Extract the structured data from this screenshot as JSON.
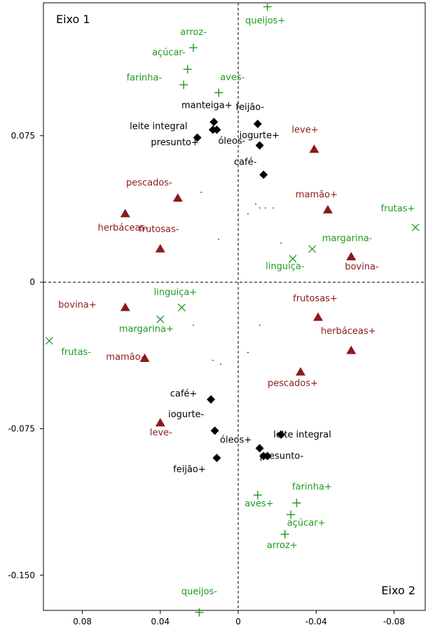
{
  "chart_data": {
    "type": "scatter",
    "corner_labels": {
      "top_left": "Eixo 1",
      "bottom_right": "Eixo 2"
    },
    "x_axis": {
      "reversed": true,
      "range": [
        0.1,
        -0.096
      ],
      "ticks": [
        0.08,
        0.04,
        0,
        -0.04,
        -0.08
      ],
      "tick_labels": [
        "0.08",
        "0.04",
        "0",
        "-0.04",
        "-0.08"
      ]
    },
    "y_axis": {
      "range": [
        -0.168,
        0.143
      ],
      "ticks": [
        0.075,
        0,
        -0.075,
        -0.15
      ],
      "tick_labels": [
        "0.075",
        "0",
        "-0.075",
        "-0.150"
      ]
    },
    "reference_lines": {
      "x": 0,
      "y": 0,
      "style": "dashed"
    },
    "colors": {
      "green": "#1f9a1f",
      "darkred": "#8b1a1a",
      "black": "#000000"
    },
    "series": [
      {
        "marker": "diamond",
        "color": "black",
        "points": [
          {
            "label": "manteiga+",
            "x": 0.0125,
            "y": 0.082
          },
          {
            "label": "leite integral",
            "x": 0.021,
            "y": 0.074
          },
          {
            "label": "presunto+",
            "x": 0.013,
            "y": 0.078
          },
          {
            "label": "óleos-",
            "x": 0.011,
            "y": 0.078
          },
          {
            "label": "feijão-",
            "x": -0.01,
            "y": 0.081
          },
          {
            "label": "iogurte+",
            "x": -0.011,
            "y": 0.07
          },
          {
            "label": "café-",
            "x": -0.013,
            "y": 0.055
          },
          {
            "label": "café+",
            "x": 0.014,
            "y": -0.06
          },
          {
            "label": "iogurte-",
            "x": 0.012,
            "y": -0.076
          },
          {
            "label": "feijão+",
            "x": 0.011,
            "y": -0.09
          },
          {
            "label": "óleos+",
            "x": -0.011,
            "y": -0.085
          },
          {
            "label": "leite integral",
            "x": -0.022,
            "y": -0.078
          },
          {
            "label": "presunto-",
            "x": -0.013,
            "y": -0.089
          },
          {
            "label": "presunto-",
            "x": -0.015,
            "y": -0.089
          }
        ]
      },
      {
        "marker": "triangle",
        "color": "darkred",
        "points": [
          {
            "label": "leve+",
            "x": -0.039,
            "y": 0.068
          },
          {
            "label": "pescados-",
            "x": 0.031,
            "y": 0.043
          },
          {
            "label": "herbáceas-",
            "x": 0.058,
            "y": 0.035
          },
          {
            "label": "mamão+",
            "x": -0.046,
            "y": 0.037
          },
          {
            "label": "frutosas-",
            "x": 0.04,
            "y": 0.017
          },
          {
            "label": "bovina-",
            "x": -0.058,
            "y": 0.013
          },
          {
            "label": "bovina+",
            "x": 0.058,
            "y": -0.013
          },
          {
            "label": "frutosas+",
            "x": -0.041,
            "y": -0.018
          },
          {
            "label": "herbáceas+",
            "x": -0.058,
            "y": -0.035
          },
          {
            "label": "mamão-",
            "x": 0.048,
            "y": -0.039
          },
          {
            "label": "pescados+",
            "x": -0.032,
            "y": -0.046
          },
          {
            "label": "leve-",
            "x": 0.04,
            "y": -0.072
          }
        ]
      },
      {
        "marker": "plus",
        "color": "green",
        "points": [
          {
            "label": "queijos+",
            "x": -0.015,
            "y": 0.141
          },
          {
            "label": "arroz-",
            "x": 0.023,
            "y": 0.12
          },
          {
            "label": "açúcar-",
            "x": 0.026,
            "y": 0.109
          },
          {
            "label": "aves-",
            "x": 0.01,
            "y": 0.097
          },
          {
            "label": "farinha-",
            "x": 0.028,
            "y": 0.101
          },
          {
            "label": "farinha+",
            "x": -0.03,
            "y": -0.113
          },
          {
            "label": "aves+",
            "x": -0.01,
            "y": -0.109
          },
          {
            "label": "açúcar+",
            "x": -0.027,
            "y": -0.119
          },
          {
            "label": "arroz+",
            "x": -0.024,
            "y": -0.129
          },
          {
            "label": "queijos-",
            "x": 0.02,
            "y": -0.169
          }
        ]
      },
      {
        "marker": "x",
        "color": "green",
        "points": [
          {
            "label": "frutas+",
            "x": -0.091,
            "y": 0.028
          },
          {
            "label": "margarina-",
            "x": -0.038,
            "y": 0.017
          },
          {
            "label": "linguiça-",
            "x": -0.028,
            "y": 0.012
          },
          {
            "label": "linguiça+",
            "x": 0.029,
            "y": -0.013
          },
          {
            "label": "margarina+",
            "x": 0.04,
            "y": -0.019
          },
          {
            "label": "frutas-",
            "x": 0.097,
            "y": -0.03
          }
        ]
      },
      {
        "marker": "dot",
        "color": "black",
        "points": [
          {
            "label": "",
            "x": 0.019,
            "y": 0.046
          },
          {
            "label": "",
            "x": -0.009,
            "y": 0.04
          },
          {
            "label": "",
            "x": -0.011,
            "y": 0.038
          },
          {
            "label": "",
            "x": -0.014,
            "y": 0.038
          },
          {
            "label": "",
            "x": -0.018,
            "y": 0.038
          },
          {
            "label": "",
            "x": -0.005,
            "y": 0.035
          },
          {
            "label": "",
            "x": 0.01,
            "y": 0.022
          },
          {
            "label": "",
            "x": -0.022,
            "y": 0.02
          },
          {
            "label": "",
            "x": 0.023,
            "y": -0.022
          },
          {
            "label": "",
            "x": -0.011,
            "y": -0.022
          },
          {
            "label": "",
            "x": -0.005,
            "y": -0.036
          },
          {
            "label": "",
            "x": 0.013,
            "y": -0.04
          },
          {
            "label": "",
            "x": 0.009,
            "y": -0.042
          }
        ]
      }
    ]
  }
}
